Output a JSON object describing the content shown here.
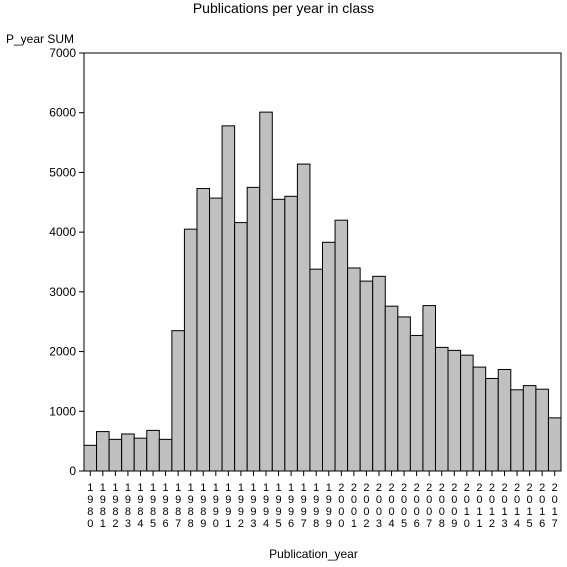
{
  "chart_data": {
    "type": "bar",
    "title": "Publications per year in class",
    "ylabel": "P_year SUM",
    "xlabel": "Publication_year",
    "ylim": [
      0,
      7000
    ],
    "yticks": [
      0,
      1000,
      2000,
      3000,
      4000,
      5000,
      6000,
      7000
    ],
    "grid": false,
    "bar_color": "#c0c0c0",
    "categories": [
      "1980",
      "1981",
      "1982",
      "1983",
      "1984",
      "1985",
      "1986",
      "1987",
      "1988",
      "1989",
      "1990",
      "1991",
      "1992",
      "1993",
      "1994",
      "1995",
      "1996",
      "1997",
      "1998",
      "1999",
      "2000",
      "2001",
      "2002",
      "2003",
      "2004",
      "2005",
      "2006",
      "2007",
      "2008",
      "2009",
      "2010",
      "2011",
      "2012",
      "2013",
      "2014",
      "2015",
      "2016",
      "2017"
    ],
    "values": [
      430,
      660,
      530,
      620,
      550,
      680,
      530,
      2350,
      4050,
      4730,
      4570,
      5780,
      4160,
      4750,
      6010,
      4550,
      4600,
      5140,
      3380,
      3830,
      4200,
      3400,
      3180,
      3260,
      2760,
      2580,
      2270,
      2770,
      2070,
      2020,
      1940,
      1740,
      1550,
      1700,
      1360,
      1430,
      1370,
      890
    ]
  }
}
